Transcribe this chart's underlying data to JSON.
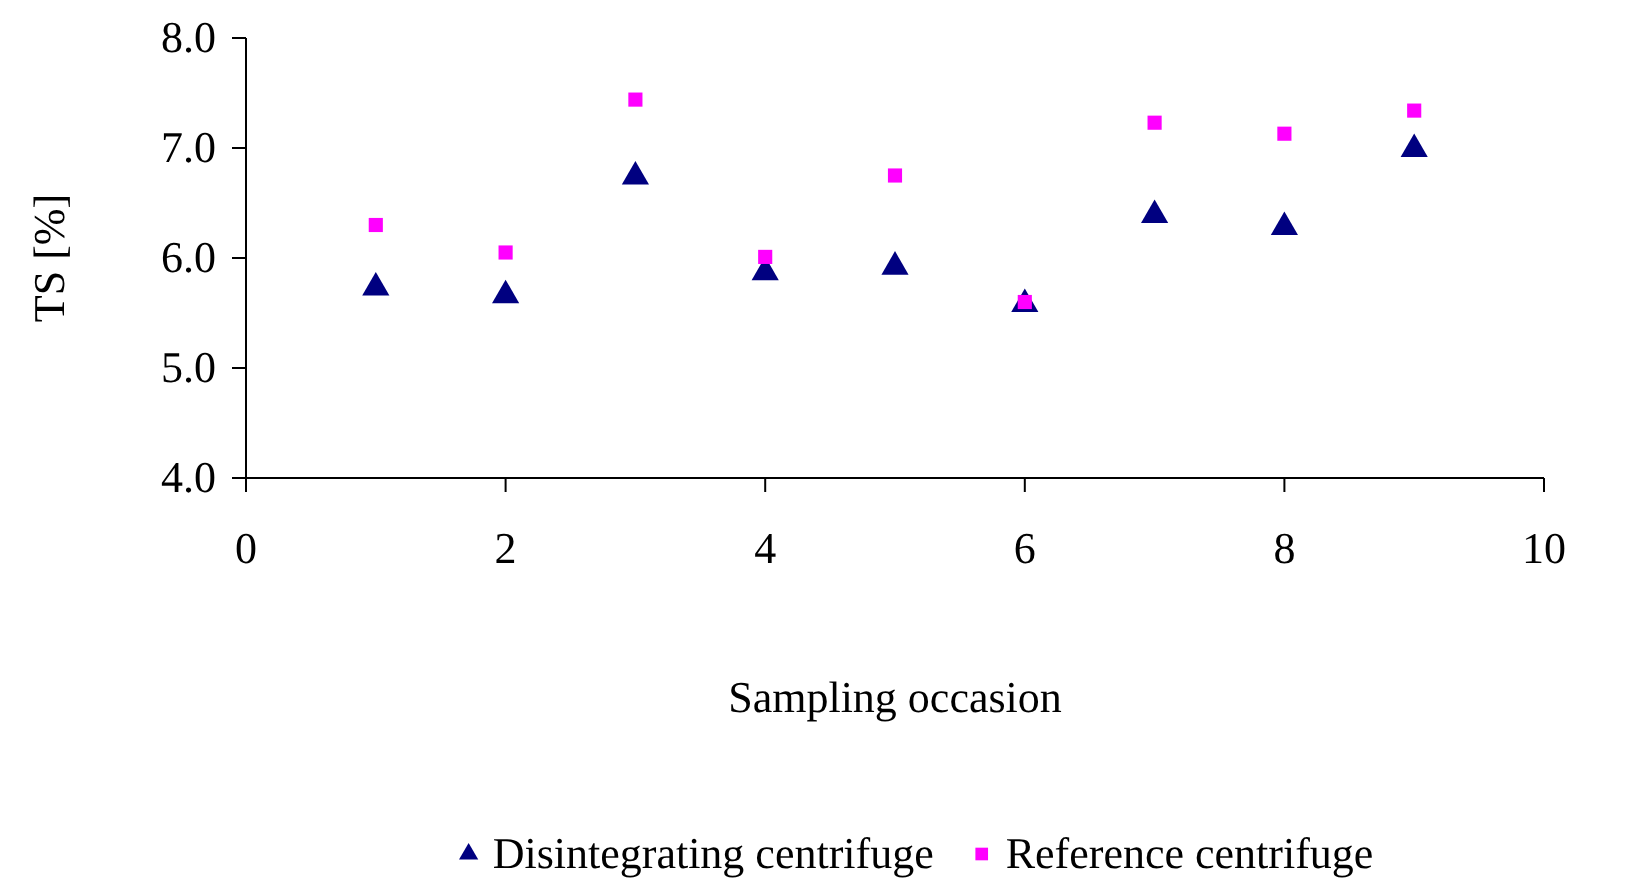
{
  "chart_data": {
    "type": "scatter",
    "xlabel": "Sampling occasion",
    "ylabel": "TS [%]",
    "x": [
      1,
      2,
      3,
      4,
      5,
      6,
      7,
      8,
      9
    ],
    "series": [
      {
        "name": "Disintegrating centrifuge",
        "color": "#000080",
        "marker": "triangle",
        "values": [
          5.73,
          5.66,
          6.74,
          5.87,
          5.92,
          5.58,
          6.39,
          6.28,
          6.99
        ]
      },
      {
        "name": "Reference centrifuge",
        "color": "#ff00ff",
        "marker": "square",
        "values": [
          6.3,
          6.05,
          7.44,
          6.01,
          6.75,
          5.6,
          7.23,
          7.13,
          7.34
        ]
      }
    ],
    "xlim": [
      0,
      10
    ],
    "xticks": [
      0,
      2,
      4,
      6,
      8,
      10
    ],
    "ylim": [
      4,
      8
    ],
    "yticks": [
      {
        "value": 4,
        "label": "4.0"
      },
      {
        "value": 5,
        "label": "5.0"
      },
      {
        "value": 6,
        "label": "6.0"
      },
      {
        "value": 7,
        "label": "7.0"
      },
      {
        "value": 8,
        "label": "8.0"
      }
    ],
    "grid": false,
    "legend": "bottom"
  }
}
